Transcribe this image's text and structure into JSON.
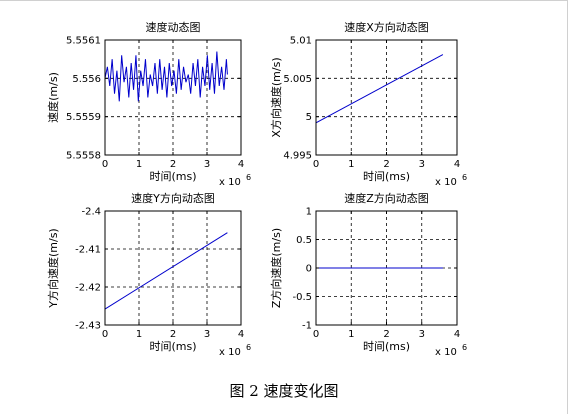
{
  "figure": {
    "caption": "图 2  速度变化图",
    "page_border_color": "#d0d0d0"
  },
  "chart_data": [
    {
      "type": "line",
      "title": "速度动态图",
      "xlabel": "时间(ms)",
      "ylabel": "速度(m/s)",
      "x_exponent_label": "x 10",
      "x_exponent_power": "6",
      "xlim": [
        0,
        4
      ],
      "ylim": [
        5.5558,
        5.5561
      ],
      "xticks": [
        0,
        1,
        2,
        3,
        4
      ],
      "xtick_labels": [
        "0",
        "1",
        "2",
        "3",
        "4"
      ],
      "yticks": [
        5.5558,
        5.5559,
        5.556,
        5.5561
      ],
      "ytick_labels": [
        "5.5558",
        "5.5559",
        "5.556",
        "5.5561"
      ],
      "grid": "dashed",
      "line_color": "#0000cc",
      "series": [
        {
          "x": [
            0,
            0.07,
            0.14,
            0.21,
            0.28,
            0.35,
            0.42,
            0.49,
            0.56,
            0.63,
            0.7,
            0.77,
            0.84,
            0.91,
            0.98,
            1.05,
            1.12,
            1.19,
            1.26,
            1.33,
            1.4,
            1.47,
            1.54,
            1.61,
            1.68,
            1.75,
            1.82,
            1.89,
            1.96,
            2.03,
            2.1,
            2.17,
            2.24,
            2.31,
            2.38,
            2.45,
            2.52,
            2.59,
            2.66,
            2.73,
            2.8,
            2.87,
            2.94,
            3.01,
            3.08,
            3.15,
            3.22,
            3.29,
            3.36,
            3.43,
            3.5,
            3.57,
            3.6
          ],
          "y": [
            5.556,
            5.55603,
            5.55598,
            5.55605,
            5.55596,
            5.55602,
            5.55594,
            5.55606,
            5.55599,
            5.55603,
            5.55595,
            5.55604,
            5.55597,
            5.55606,
            5.55594,
            5.55602,
            5.55598,
            5.55605,
            5.55595,
            5.55601,
            5.55598,
            5.55604,
            5.55596,
            5.55605,
            5.55597,
            5.55603,
            5.55595,
            5.55604,
            5.55598,
            5.55602,
            5.55596,
            5.55605,
            5.55597,
            5.55603,
            5.55599,
            5.55601,
            5.55596,
            5.55604,
            5.55598,
            5.55605,
            5.55595,
            5.55603,
            5.55598,
            5.55606,
            5.55597,
            5.55604,
            5.55596,
            5.55607,
            5.55598,
            5.55603,
            5.55597,
            5.55605,
            5.55601
          ]
        }
      ]
    },
    {
      "type": "line",
      "title": "速度X方向动态图",
      "xlabel": "时间(ms)",
      "ylabel": "X方向速度(m/s)",
      "x_exponent_label": "x 10",
      "x_exponent_power": "6",
      "xlim": [
        0,
        4
      ],
      "ylim": [
        4.995,
        5.01
      ],
      "xticks": [
        0,
        1,
        2,
        3,
        4
      ],
      "xtick_labels": [
        "0",
        "1",
        "2",
        "3",
        "4"
      ],
      "yticks": [
        4.995,
        5,
        5.005,
        5.01
      ],
      "ytick_labels": [
        "4.995",
        "5",
        "5.005",
        "5.01"
      ],
      "grid": "dashed",
      "line_color": "#0000cc",
      "series": [
        {
          "x": [
            0,
            3.6
          ],
          "y": [
            4.9992,
            5.0081
          ]
        }
      ]
    },
    {
      "type": "line",
      "title": "速度Y方向动态图",
      "xlabel": "时间(ms)",
      "ylabel": "Y方向速度(m/s)",
      "x_exponent_label": "x 10",
      "x_exponent_power": "6",
      "xlim": [
        0,
        4
      ],
      "ylim": [
        -2.43,
        -2.4
      ],
      "xticks": [
        0,
        1,
        2,
        3,
        4
      ],
      "xtick_labels": [
        "0",
        "1",
        "2",
        "3",
        "4"
      ],
      "yticks": [
        -2.43,
        -2.42,
        -2.41,
        -2.4
      ],
      "ytick_labels": [
        "-2.43",
        "-2.42",
        "-2.41",
        "-2.4"
      ],
      "grid": "dashed",
      "line_color": "#0000cc",
      "series": [
        {
          "x": [
            0,
            3.6
          ],
          "y": [
            -2.4258,
            -2.4057
          ]
        }
      ]
    },
    {
      "type": "line",
      "title": "速度Z方向动态图",
      "xlabel": "时间(ms)",
      "ylabel": "Z方向速度(m/s)",
      "x_exponent_label": "x 10",
      "x_exponent_power": "6",
      "xlim": [
        0,
        4
      ],
      "ylim": [
        -1,
        1
      ],
      "xticks": [
        0,
        1,
        2,
        3,
        4
      ],
      "xtick_labels": [
        "0",
        "1",
        "2",
        "3",
        "4"
      ],
      "yticks": [
        -1,
        -0.5,
        0,
        0.5,
        1
      ],
      "ytick_labels": [
        "-1",
        "-0.5",
        "0",
        "0.5",
        "1"
      ],
      "grid": "dashed",
      "line_color": "#0000cc",
      "series": [
        {
          "x": [
            0,
            3.6
          ],
          "y": [
            0,
            0
          ]
        }
      ]
    }
  ]
}
